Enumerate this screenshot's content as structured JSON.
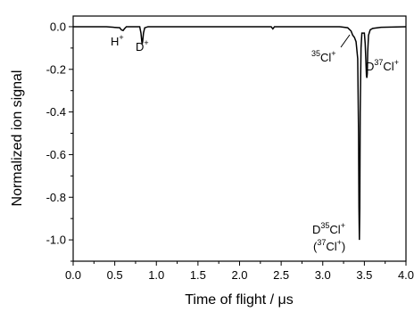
{
  "chart_data": {
    "type": "line",
    "xlabel": "Time of flight / μs",
    "ylabel": "Normalized ion signal",
    "xlim": [
      0.0,
      4.0
    ],
    "ylim": [
      -1.1,
      0.05
    ],
    "xticks": [
      "0.0",
      "0.5",
      "1.0",
      "1.5",
      "2.0",
      "2.5",
      "3.0",
      "3.5",
      "4.0"
    ],
    "yticks": [
      "0.0",
      "-0.2",
      "-0.4",
      "-0.6",
      "-0.8",
      "-1.0"
    ],
    "series": [
      {
        "x": [
          0.0,
          0.4,
          0.56,
          0.58,
          0.6,
          0.62,
          0.64,
          0.8,
          0.815,
          0.825,
          0.83,
          0.835,
          0.845,
          0.86,
          0.9,
          1.5,
          2.38,
          2.4,
          2.42,
          3.0,
          3.2,
          3.3,
          3.34,
          3.36,
          3.38,
          3.4,
          3.42,
          3.43,
          3.435,
          3.44,
          3.445,
          3.45,
          3.46,
          3.47,
          3.5,
          3.51,
          3.52,
          3.525,
          3.53,
          3.535,
          3.54,
          3.55,
          3.57,
          3.6,
          3.7,
          4.0
        ],
        "y": [
          0.0,
          0.0,
          -0.005,
          -0.015,
          -0.018,
          -0.008,
          0.0,
          0.0,
          -0.03,
          -0.07,
          -0.08,
          -0.07,
          -0.03,
          -0.005,
          0.0,
          0.0,
          0.0,
          -0.01,
          0.0,
          0.0,
          0.0,
          -0.005,
          -0.02,
          -0.04,
          -0.05,
          -0.07,
          -0.15,
          -0.5,
          -0.85,
          -1.0,
          -0.85,
          -0.4,
          -0.1,
          -0.03,
          -0.03,
          -0.08,
          -0.18,
          -0.23,
          -0.24,
          -0.22,
          -0.12,
          -0.04,
          -0.015,
          -0.008,
          -0.003,
          0.0
        ]
      }
    ],
    "annotations": [
      {
        "base": "H",
        "sup": "+"
      },
      {
        "base": "D",
        "sup": "+"
      },
      {
        "presup": "35",
        "base": "Cl",
        "sup": "+"
      },
      {
        "base": "D",
        "presup2": "37",
        "base2": "Cl",
        "sup": "+"
      },
      {
        "base": "D",
        "presup2": "35",
        "base2": "Cl",
        "sup": "+"
      },
      {
        "open": "(",
        "presup": "37",
        "base": "Cl",
        "sup": "+",
        "close": ")"
      }
    ]
  }
}
